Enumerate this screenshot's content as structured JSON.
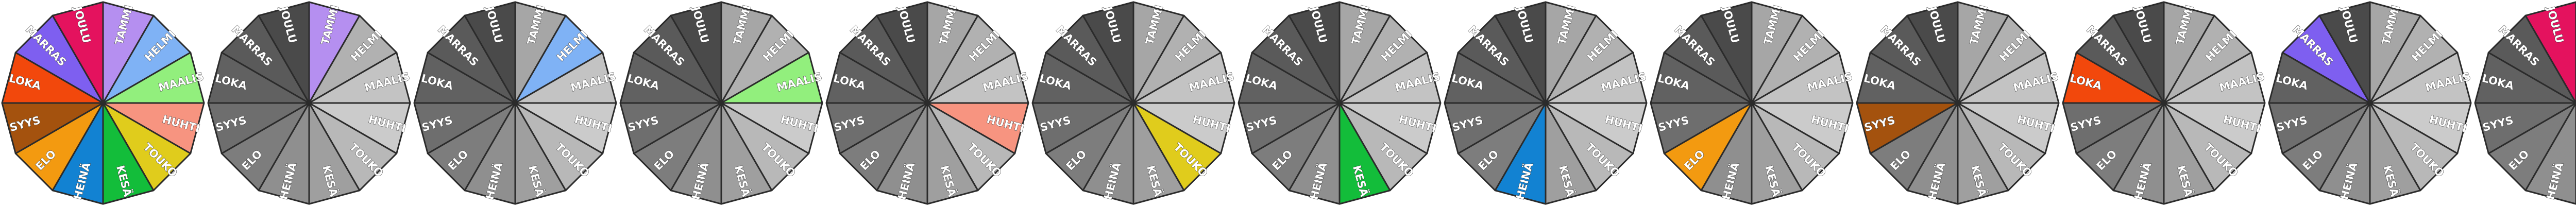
{
  "months": [
    "TAMMI",
    "HELMI",
    "MAALIS",
    "HUHTI",
    "TOUKO",
    "KESÄ",
    "HEINÄ",
    "ELO",
    "SYYS",
    "LOKA",
    "MARRAS",
    "JOULU"
  ],
  "month_colors": [
    "#b58ff0",
    "#7fb2f5",
    "#92ef7d",
    "#f79480",
    "#e0cc1c",
    "#13bd3a",
    "#1282d2",
    "#f39a10",
    "#a4520e",
    "#f2480c",
    "#7e5ff0",
    "#e4125e"
  ],
  "gray_shades": [
    "#a6a6a6",
    "#b1b1b1",
    "#c3c3c3",
    "#cbcbcb",
    "#b8b8b8",
    "#9f9f9f",
    "#8f8f8f",
    "#7d7d7d",
    "#6e6e6e",
    "#616161",
    "#5a5a5a",
    "#4a4a4a"
  ],
  "wheels": [
    {
      "highlight": "all"
    },
    {
      "highlight": 0
    },
    {
      "highlight": 1
    },
    {
      "highlight": 2
    },
    {
      "highlight": 3
    },
    {
      "highlight": 4
    },
    {
      "highlight": 5
    },
    {
      "highlight": 6
    },
    {
      "highlight": 7
    },
    {
      "highlight": 8
    },
    {
      "highlight": 9
    },
    {
      "highlight": 10
    },
    {
      "highlight": 11
    }
  ]
}
